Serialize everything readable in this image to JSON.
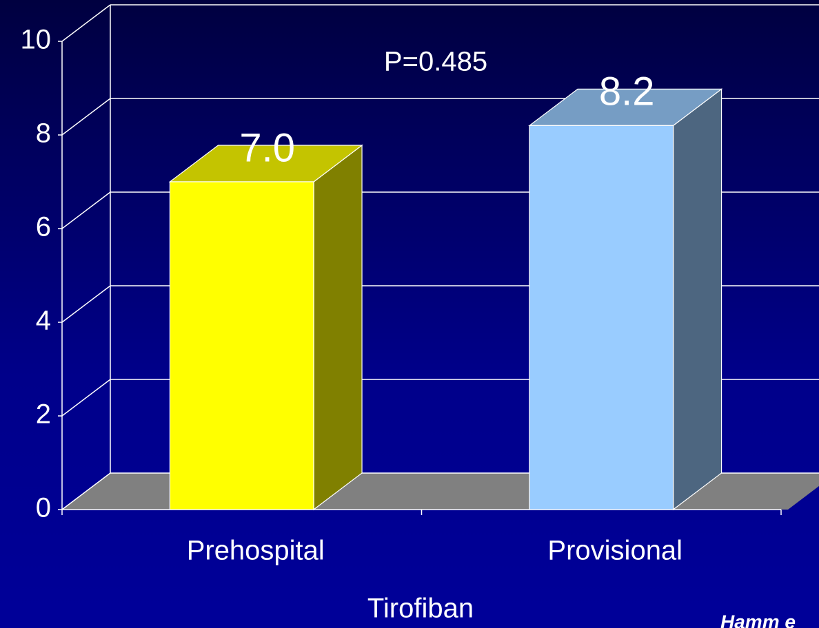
{
  "chart_data": {
    "type": "bar3d",
    "categories": [
      "Prehospital",
      "Provisional"
    ],
    "values": [
      7.0,
      8.2
    ],
    "value_labels": [
      "7.0",
      "8.2"
    ],
    "colors": [
      "#ffff00",
      "#99ccff"
    ],
    "ylim": [
      0,
      10
    ],
    "yticks": [
      0,
      2,
      4,
      6,
      8,
      10
    ],
    "grid": true,
    "xlabel": "Tirofiban",
    "annotation": "P=0.485",
    "source": "Hamm e"
  }
}
